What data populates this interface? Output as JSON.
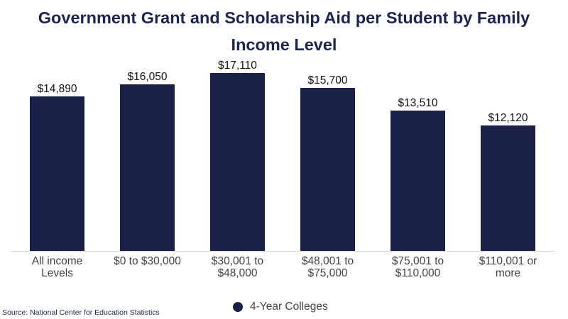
{
  "chart_data": {
    "type": "bar",
    "title": "Government Grant and Scholarship Aid per Student by Family Income Level",
    "categories": [
      "All income Levels",
      "$0 to $30,000",
      "$30,001 to $48,000",
      "$48,001 to $75,000",
      "$75,001 to $110,000",
      "$110,001 or more"
    ],
    "category_lines": [
      [
        "All income",
        "Levels"
      ],
      [
        "$0 to $30,000",
        ""
      ],
      [
        "$30,001 to",
        "$48,000"
      ],
      [
        "$48,001 to",
        "$75,000"
      ],
      [
        "$75,001 to",
        "$110,000"
      ],
      [
        "$110,001 or",
        "more"
      ]
    ],
    "series": [
      {
        "name": "4-Year Colleges",
        "color": "#1a2047",
        "values": [
          14890,
          16050,
          17110,
          15700,
          13510,
          12120
        ]
      }
    ],
    "data_labels": [
      "$14,890",
      "$16,050",
      "$17,110",
      "$15,700",
      "$13,510",
      "$12,120"
    ],
    "xlabel": "",
    "ylabel": "",
    "ylim": [
      0,
      20000
    ],
    "grid": false,
    "legend_position": "bottom"
  },
  "title_line1": "Government Grant and Scholarship Aid per Student by Family",
  "title_line2": "Income Level",
  "legend": {
    "label": "4-Year Colleges"
  },
  "source": "Source: National Center for Education Statistics"
}
